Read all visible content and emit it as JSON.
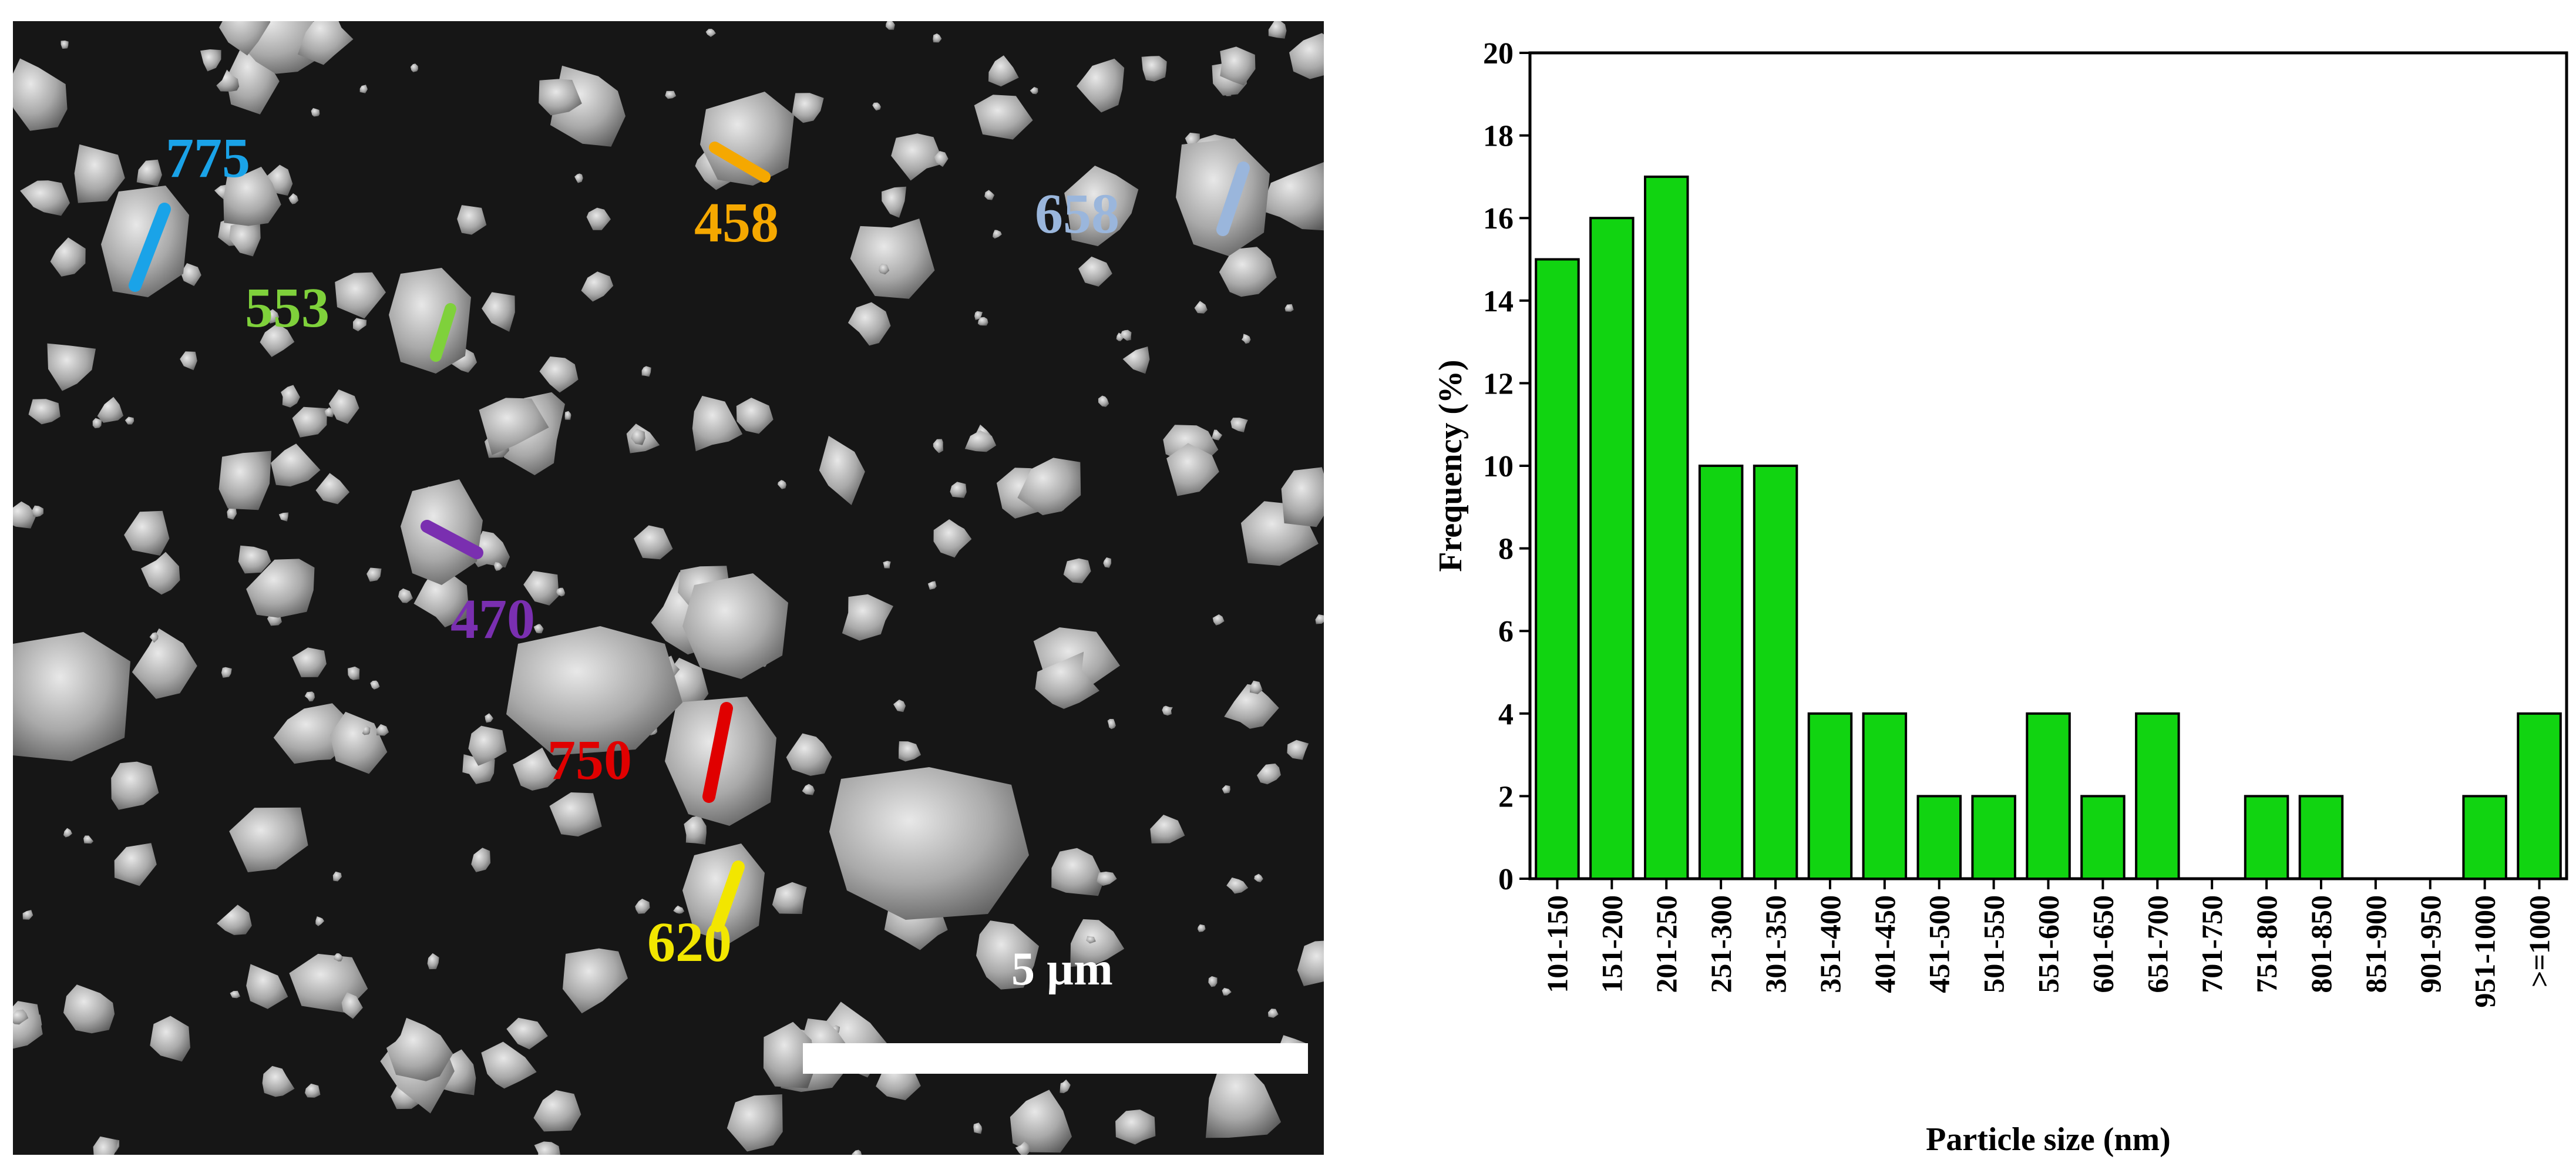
{
  "micrograph": {
    "scale_bar_label": "5 µm",
    "annotations": [
      {
        "label": "775",
        "color": "#1aa3e8"
      },
      {
        "label": "458",
        "color": "#f5a800"
      },
      {
        "label": "658",
        "color": "#9ab6dc"
      },
      {
        "label": "553",
        "color": "#7fd13b"
      },
      {
        "label": "470",
        "color": "#7a2fb0"
      },
      {
        "label": "750",
        "color": "#e00000"
      },
      {
        "label": "620",
        "color": "#f2e600"
      }
    ]
  },
  "chart_data": {
    "type": "bar",
    "xlabel": "Particle size (nm)",
    "ylabel": "Frequency (%)",
    "ylim": [
      0,
      20
    ],
    "yticks": [
      0,
      2,
      4,
      6,
      8,
      10,
      12,
      14,
      16,
      18,
      20
    ],
    "categories": [
      "101-150",
      "151-200",
      "201-250",
      "251-300",
      "301-350",
      "351-400",
      "401-450",
      "451-500",
      "501-550",
      "551-600",
      "601-650",
      "651-700",
      "701-750",
      "751-800",
      "801-850",
      "851-900",
      "901-950",
      "951-1000",
      ">=1000"
    ],
    "values": [
      15,
      16,
      17,
      10,
      10,
      4,
      4,
      2,
      2,
      4,
      2,
      4,
      0,
      2,
      2,
      0,
      0,
      2,
      4
    ],
    "bar_color": "#11d411",
    "bar_edge_color": "#000000",
    "grid": false
  }
}
